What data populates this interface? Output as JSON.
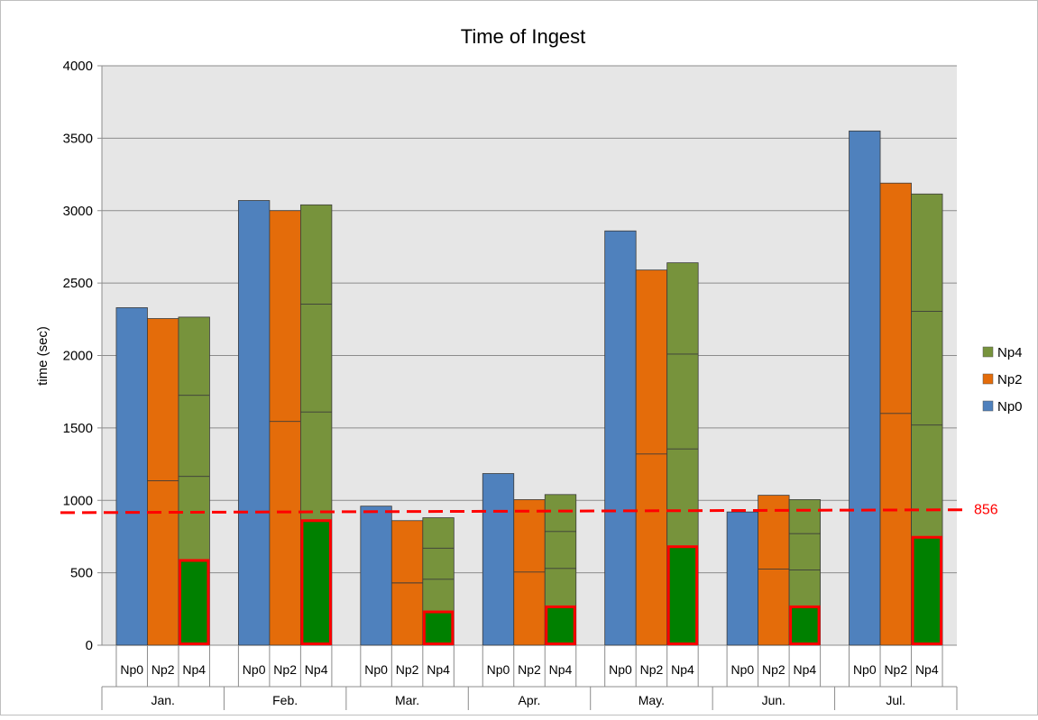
{
  "chart_data": {
    "type": "bar",
    "title": "Time of Ingest",
    "ylabel": "time (sec)",
    "xlabel": "",
    "ylim": [
      0,
      4000
    ],
    "yticks": [
      0,
      500,
      1000,
      1500,
      2000,
      2500,
      3000,
      3500,
      4000
    ],
    "grid": true,
    "legend_position": "right",
    "legend": [
      {
        "name": "Np4",
        "color": "#77933c"
      },
      {
        "name": "Np2",
        "color": "#e46c0a"
      },
      {
        "name": "Np0",
        "color": "#4f81bd"
      }
    ],
    "months": [
      "Jan.",
      "Feb.",
      "Mar.",
      "Apr.",
      "May.",
      "Jun.",
      "Jul."
    ],
    "subcategories": [
      "Np0",
      "Np2",
      "Np4"
    ],
    "series": [
      {
        "name": "Np0",
        "color": "#4f81bd",
        "values": [
          2330,
          3070,
          960,
          1185,
          2860,
          920,
          3550
        ],
        "splits": [
          [],
          [],
          [],
          [],
          [],
          [],
          []
        ]
      },
      {
        "name": "Np2",
        "color": "#e46c0a",
        "values": [
          2255,
          3000,
          860,
          1005,
          2590,
          1035,
          3190
        ],
        "splits": [
          [
            1135
          ],
          [
            1545
          ],
          [
            430
          ],
          [
            505
          ],
          [
            1320
          ],
          [
            525
          ],
          [
            1600
          ]
        ]
      },
      {
        "name": "Np4",
        "color": "#77933c",
        "values": [
          2265,
          3040,
          880,
          1040,
          2640,
          1005,
          3115
        ],
        "splits": [
          [
            585,
            1165,
            1725
          ],
          [
            860,
            1610,
            2355
          ],
          [
            230,
            455,
            670
          ],
          [
            265,
            530,
            785
          ],
          [
            680,
            1355,
            2010
          ],
          [
            265,
            520,
            770
          ],
          [
            745,
            1520,
            2305
          ]
        ]
      }
    ],
    "highlight": {
      "series": "Np4",
      "values": [
        585,
        860,
        230,
        265,
        680,
        265,
        745
      ],
      "fill": "#008000",
      "outline": "#ff0000"
    },
    "threshold": {
      "label": "856",
      "value_left": 915,
      "value_right": 935,
      "color": "#ff0000"
    }
  }
}
